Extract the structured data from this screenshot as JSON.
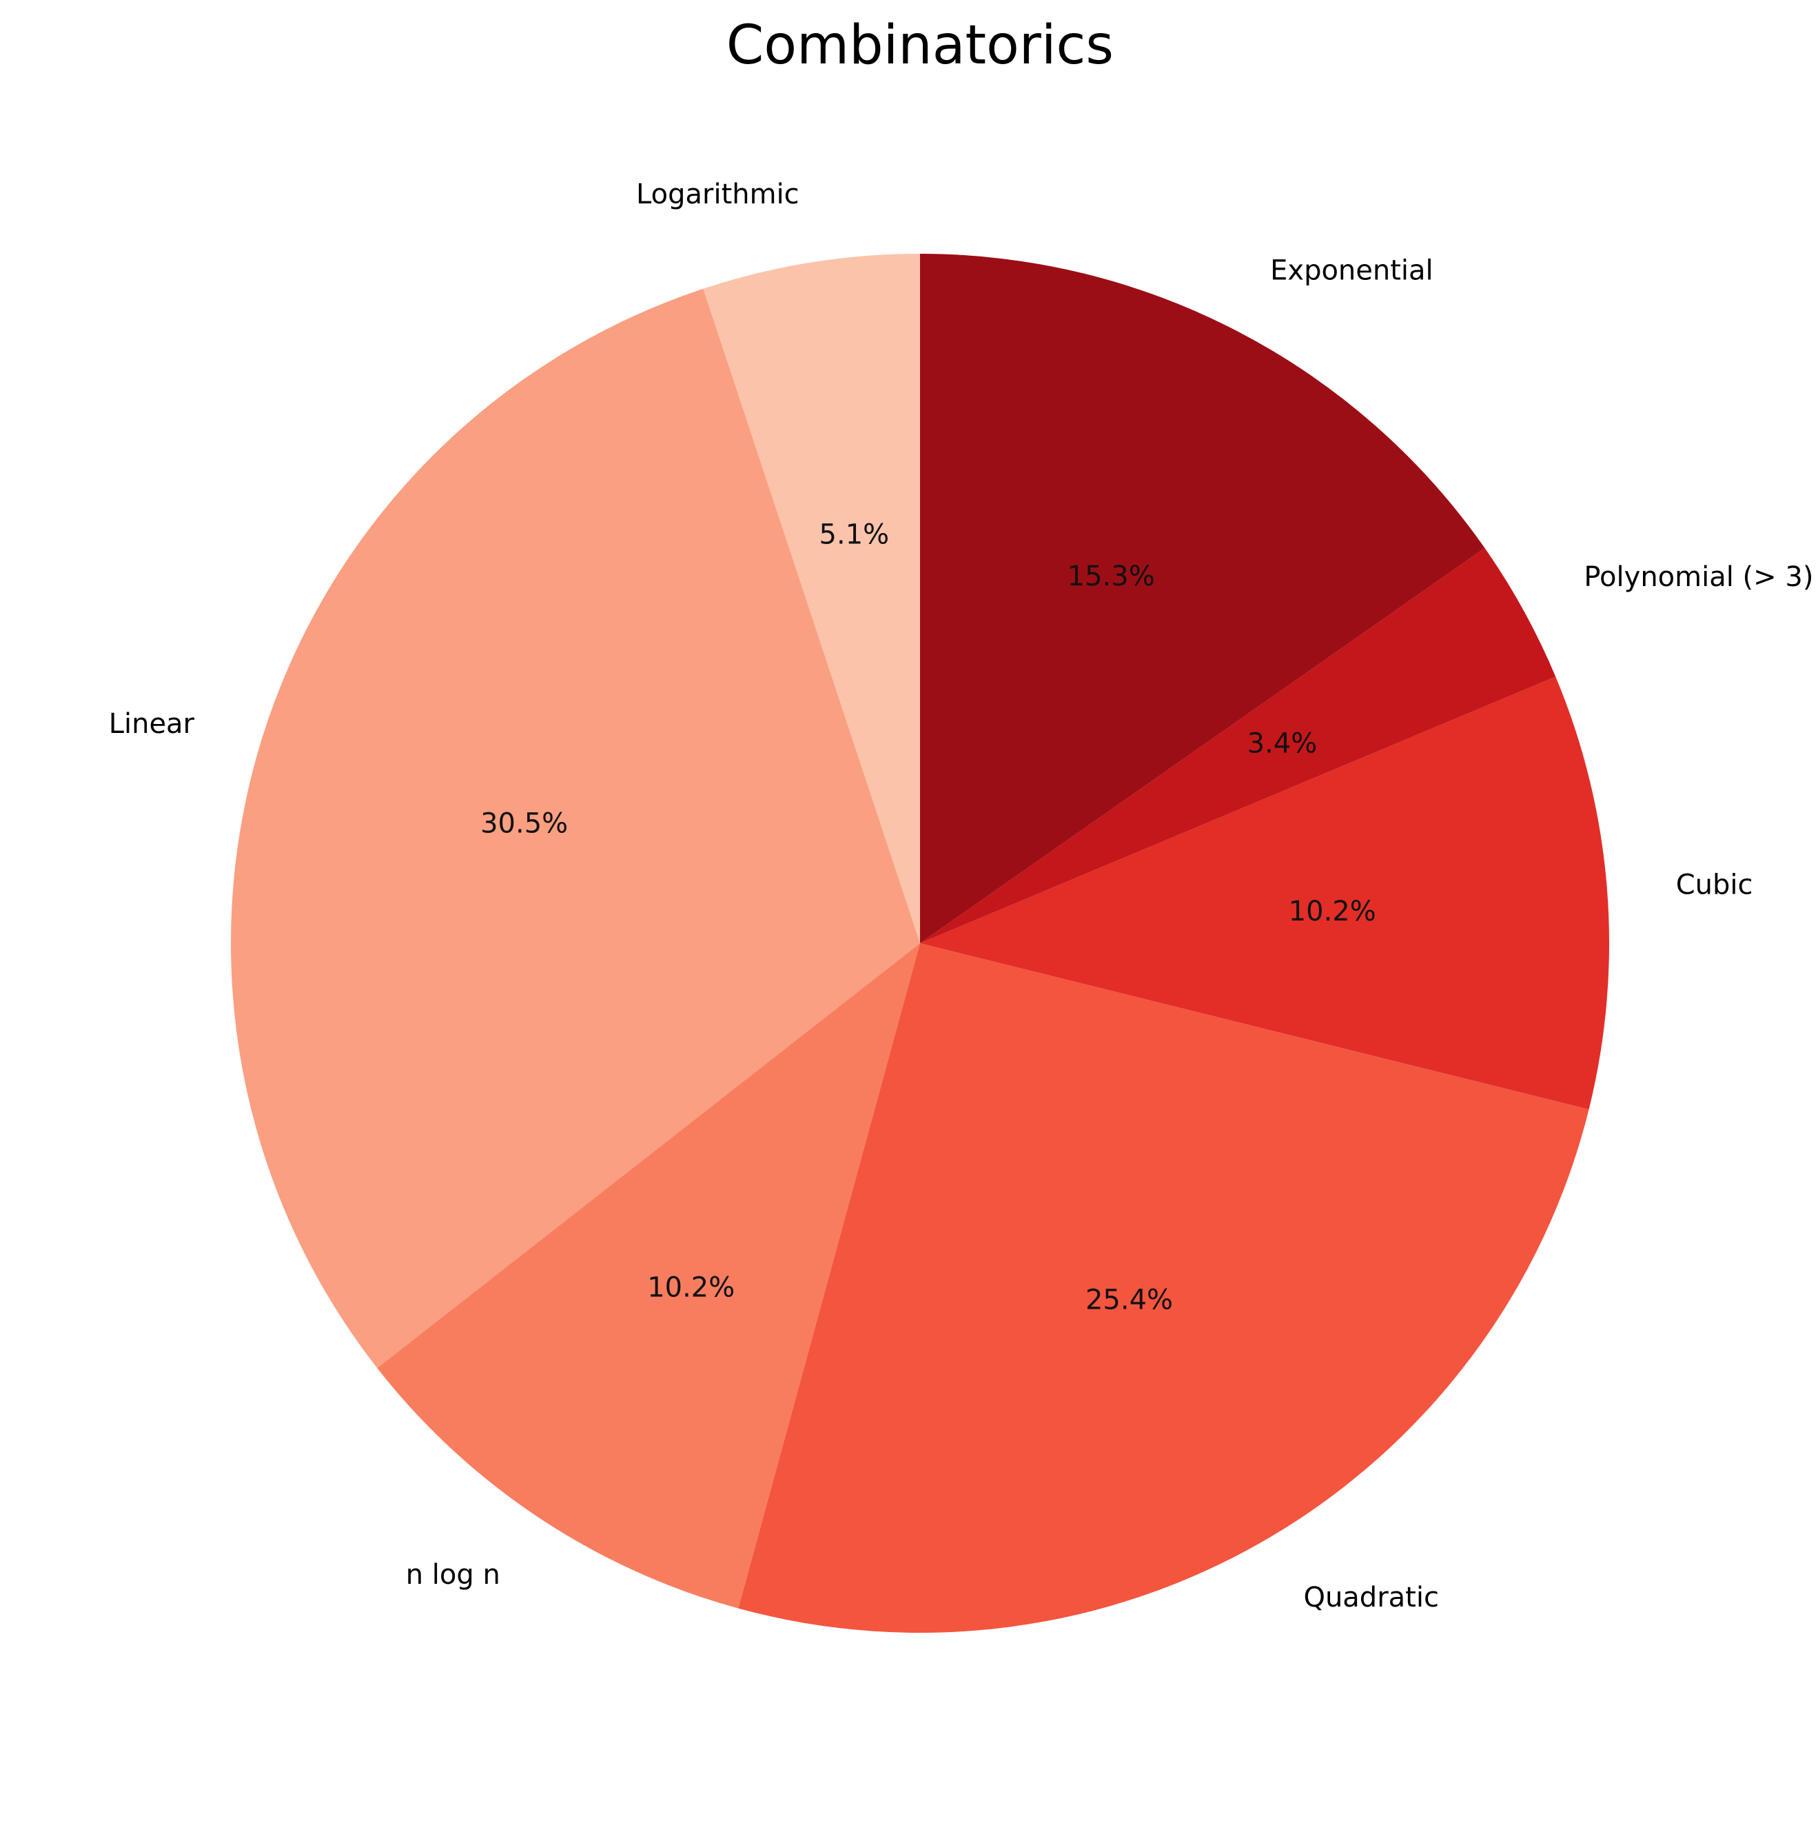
{
  "chart_data": {
    "type": "pie",
    "title": "Combinatorics",
    "start_angle_deg": 90,
    "direction": "counterclockwise",
    "slices": [
      {
        "label": "Logarithmic",
        "value": 5.1,
        "pct_label": "5.1%",
        "color": "#fcc3ab"
      },
      {
        "label": "Linear",
        "value": 30.5,
        "pct_label": "30.5%",
        "color": "#fa9f81"
      },
      {
        "label": "n log n",
        "value": 10.2,
        "pct_label": "10.2%",
        "color": "#f87d5f"
      },
      {
        "label": "Quadratic",
        "value": 25.4,
        "pct_label": "25.4%",
        "color": "#f4553e"
      },
      {
        "label": "Cubic",
        "value": 10.2,
        "pct_label": "10.2%",
        "color": "#e22e27"
      },
      {
        "label": "Polynomial (> 3)",
        "value": 3.4,
        "pct_label": "3.4%",
        "color": "#c4171b"
      },
      {
        "label": "Exponential",
        "value": 15.3,
        "pct_label": "15.3%",
        "color": "#9c0e16"
      }
    ]
  }
}
